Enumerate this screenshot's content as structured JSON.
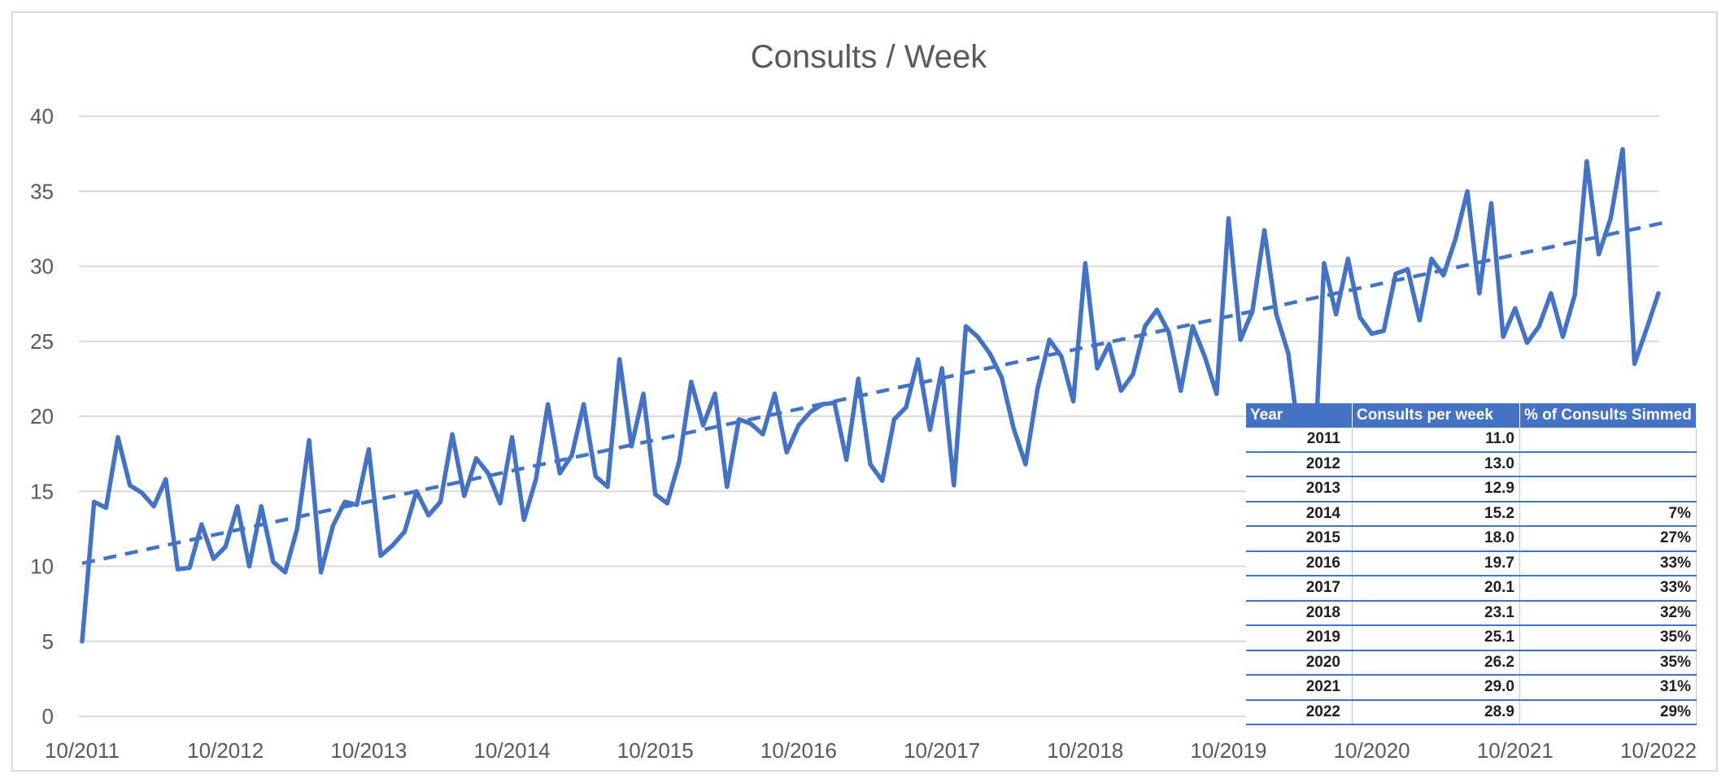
{
  "chart_data": {
    "type": "line",
    "title": "Consults / Week",
    "xlabel": "",
    "ylabel": "",
    "ylim": [
      0,
      40
    ],
    "yticks": [
      "0",
      "5",
      "10",
      "15",
      "20",
      "25",
      "30",
      "35",
      "40"
    ],
    "xticks": [
      "10/2011",
      "10/2012",
      "10/2013",
      "10/2014",
      "10/2015",
      "10/2016",
      "10/2017",
      "10/2018",
      "10/2019",
      "10/2020",
      "10/2021",
      "10/2022"
    ],
    "xlim": [
      "10/2011",
      "10/2022"
    ],
    "grid": true,
    "series": [
      {
        "color": "#4472c4",
        "points": [
          [
            "10/2011",
            5.0
          ],
          [
            "11/2011",
            14.3
          ],
          [
            "12/2011",
            13.9
          ],
          [
            "01/2012",
            18.6
          ],
          [
            "02/2012",
            15.4
          ],
          [
            "03/2012",
            14.9
          ],
          [
            "04/2012",
            14.0
          ],
          [
            "05/2012",
            15.8
          ],
          [
            "06/2012",
            9.8
          ],
          [
            "07/2012",
            9.9
          ],
          [
            "08/2012",
            12.8
          ],
          [
            "09/2012",
            10.5
          ],
          [
            "10/2012",
            11.3
          ],
          [
            "11/2012",
            14.0
          ],
          [
            "12/2012",
            10.0
          ],
          [
            "01/2013",
            14.0
          ],
          [
            "02/2013",
            10.3
          ],
          [
            "03/2013",
            9.6
          ],
          [
            "04/2013",
            12.5
          ],
          [
            "05/2013",
            18.4
          ],
          [
            "06/2013",
            9.6
          ],
          [
            "07/2013",
            12.7
          ],
          [
            "08/2013",
            14.3
          ],
          [
            "09/2013",
            14.1
          ],
          [
            "10/2013",
            17.8
          ],
          [
            "11/2013",
            10.7
          ],
          [
            "12/2013",
            11.4
          ],
          [
            "01/2014",
            12.3
          ],
          [
            "02/2014",
            15.0
          ],
          [
            "03/2014",
            13.4
          ],
          [
            "04/2014",
            14.3
          ],
          [
            "05/2014",
            18.8
          ],
          [
            "06/2014",
            14.7
          ],
          [
            "07/2014",
            17.2
          ],
          [
            "08/2014",
            16.2
          ],
          [
            "09/2014",
            14.2
          ],
          [
            "10/2014",
            18.6
          ],
          [
            "11/2014",
            13.1
          ],
          [
            "12/2014",
            15.8
          ],
          [
            "01/2015",
            20.8
          ],
          [
            "02/2015",
            16.2
          ],
          [
            "03/2015",
            17.4
          ],
          [
            "04/2015",
            20.8
          ],
          [
            "05/2015",
            16.0
          ],
          [
            "06/2015",
            15.3
          ],
          [
            "07/2015",
            23.8
          ],
          [
            "08/2015",
            18.0
          ],
          [
            "09/2015",
            21.5
          ],
          [
            "10/2015",
            14.8
          ],
          [
            "11/2015",
            14.2
          ],
          [
            "12/2015",
            17.0
          ],
          [
            "01/2016",
            22.3
          ],
          [
            "02/2016",
            19.4
          ],
          [
            "03/2016",
            21.5
          ],
          [
            "04/2016",
            15.3
          ],
          [
            "05/2016",
            19.8
          ],
          [
            "06/2016",
            19.5
          ],
          [
            "07/2016",
            18.8
          ],
          [
            "08/2016",
            21.5
          ],
          [
            "09/2016",
            17.6
          ],
          [
            "10/2016",
            19.4
          ],
          [
            "11/2016",
            20.3
          ],
          [
            "12/2016",
            20.8
          ],
          [
            "01/2017",
            20.9
          ],
          [
            "02/2017",
            17.1
          ],
          [
            "03/2017",
            22.5
          ],
          [
            "04/2017",
            16.8
          ],
          [
            "05/2017",
            15.7
          ],
          [
            "06/2017",
            19.8
          ],
          [
            "07/2017",
            20.6
          ],
          [
            "08/2017",
            23.8
          ],
          [
            "09/2017",
            19.1
          ],
          [
            "10/2017",
            23.2
          ],
          [
            "11/2017",
            15.4
          ],
          [
            "12/2017",
            26.0
          ],
          [
            "01/2018",
            25.3
          ],
          [
            "02/2018",
            24.2
          ],
          [
            "03/2018",
            22.6
          ],
          [
            "04/2018",
            19.2
          ],
          [
            "05/2018",
            16.8
          ],
          [
            "06/2018",
            21.8
          ],
          [
            "07/2018",
            25.1
          ],
          [
            "08/2018",
            24.0
          ],
          [
            "09/2018",
            21.0
          ],
          [
            "10/2018",
            30.2
          ],
          [
            "11/2018",
            23.2
          ],
          [
            "12/2018",
            24.8
          ],
          [
            "01/2019",
            21.7
          ],
          [
            "02/2019",
            22.8
          ],
          [
            "03/2019",
            26.0
          ],
          [
            "04/2019",
            27.1
          ],
          [
            "05/2019",
            25.6
          ],
          [
            "06/2019",
            21.7
          ],
          [
            "07/2019",
            26.0
          ],
          [
            "08/2019",
            24.0
          ],
          [
            "09/2019",
            21.5
          ],
          [
            "10/2019",
            33.2
          ],
          [
            "11/2019",
            25.1
          ],
          [
            "12/2019",
            27.0
          ],
          [
            "01/2020",
            32.4
          ],
          [
            "02/2020",
            26.8
          ],
          [
            "03/2020",
            24.2
          ],
          [
            "04/2020",
            18.0
          ],
          [
            "05/2020",
            13.5
          ],
          [
            "06/2020",
            30.2
          ],
          [
            "07/2020",
            26.8
          ],
          [
            "08/2020",
            30.5
          ],
          [
            "09/2020",
            26.6
          ],
          [
            "10/2020",
            25.5
          ],
          [
            "11/2020",
            25.7
          ],
          [
            "12/2020",
            29.5
          ],
          [
            "01/2021",
            29.8
          ],
          [
            "02/2021",
            26.4
          ],
          [
            "03/2021",
            30.5
          ],
          [
            "04/2021",
            29.4
          ],
          [
            "05/2021",
            31.8
          ],
          [
            "06/2021",
            35.0
          ],
          [
            "07/2021",
            28.2
          ],
          [
            "08/2021",
            34.2
          ],
          [
            "09/2021",
            25.3
          ],
          [
            "10/2021",
            27.2
          ],
          [
            "11/2021",
            24.9
          ],
          [
            "12/2021",
            26.0
          ],
          [
            "01/2022",
            28.2
          ],
          [
            "02/2022",
            25.3
          ],
          [
            "03/2022",
            28.1
          ],
          [
            "04/2022",
            37.0
          ],
          [
            "05/2022",
            30.8
          ],
          [
            "06/2022",
            33.2
          ],
          [
            "07/2022",
            37.8
          ],
          [
            "08/2022",
            23.5
          ],
          [
            "09/2022",
            25.8
          ],
          [
            "10/2022",
            28.2
          ]
        ]
      }
    ],
    "trendline": {
      "style": "dashed",
      "color": "#4472c4",
      "start": [
        "10/2011",
        10.2
      ],
      "end": [
        "11/2022",
        33.0
      ]
    },
    "table": {
      "headers": [
        "Year",
        "Consults per week",
        "% of Consults Simmed"
      ],
      "rows": [
        [
          "2011",
          "11.0",
          ""
        ],
        [
          "2012",
          "13.0",
          ""
        ],
        [
          "2013",
          "12.9",
          ""
        ],
        [
          "2014",
          "15.2",
          "7%"
        ],
        [
          "2015",
          "18.0",
          "27%"
        ],
        [
          "2016",
          "19.7",
          "33%"
        ],
        [
          "2017",
          "20.1",
          "33%"
        ],
        [
          "2018",
          "23.1",
          "32%"
        ],
        [
          "2019",
          "25.1",
          "35%"
        ],
        [
          "2020",
          "26.2",
          "35%"
        ],
        [
          "2021",
          "29.0",
          "31%"
        ],
        [
          "2022",
          "28.9",
          "29%"
        ]
      ]
    }
  }
}
